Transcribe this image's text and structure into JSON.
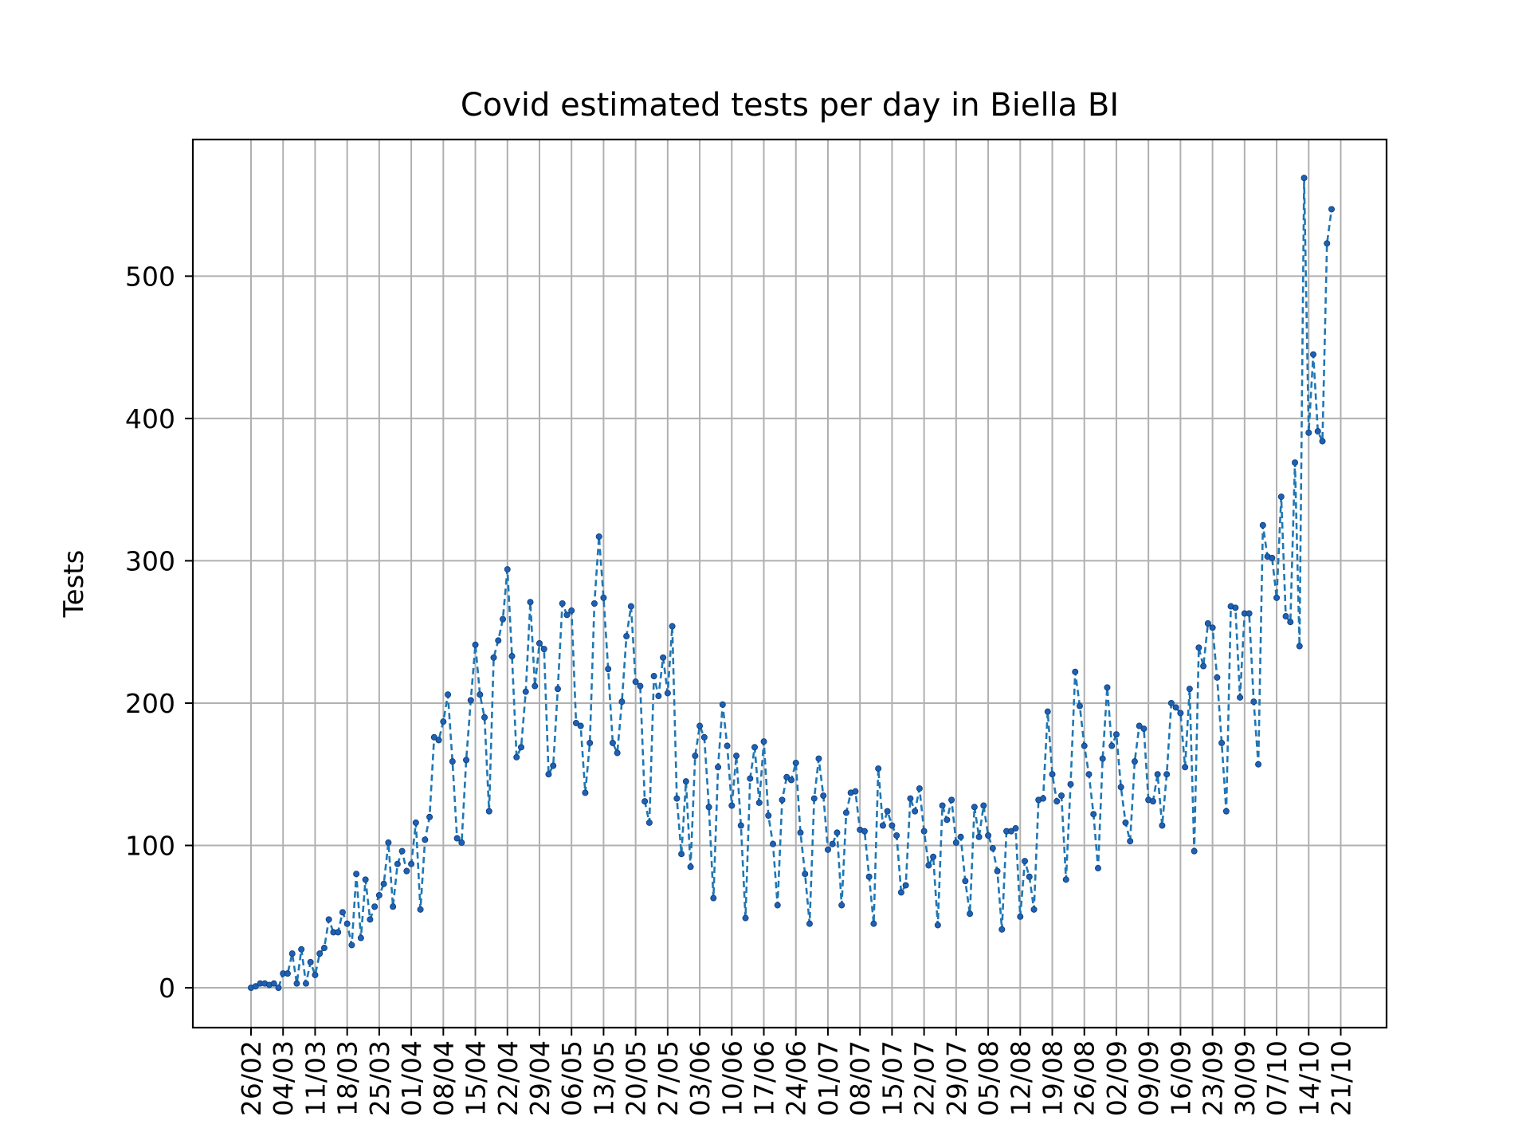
{
  "colors": {
    "line": "#1f77b4",
    "marker": "#1f5fb4",
    "grid": "#b0b0b0",
    "frame": "#000000",
    "background": "#ffffff"
  },
  "chart_data": {
    "type": "line",
    "title": "Covid estimated tests per day in Biella BI",
    "xlabel": "",
    "ylabel": "Tests",
    "grid": true,
    "line_style": "dashed",
    "marker": "dot",
    "ylim": [
      -28,
      596
    ],
    "yticks": [
      0,
      100,
      200,
      300,
      400,
      500
    ],
    "x_start_label": "26/02",
    "x_tick_labels": [
      "26/02",
      "04/03",
      "11/03",
      "18/03",
      "25/03",
      "01/04",
      "08/04",
      "15/04",
      "22/04",
      "29/04",
      "06/05",
      "13/05",
      "20/05",
      "27/05",
      "03/06",
      "10/06",
      "17/06",
      "24/06",
      "01/07",
      "08/07",
      "15/07",
      "22/07",
      "29/07",
      "05/08",
      "12/08",
      "19/08",
      "26/08",
      "02/09",
      "09/09",
      "16/09",
      "23/09",
      "30/09",
      "07/10",
      "14/10",
      "21/10"
    ],
    "values": [
      0,
      1,
      3,
      3,
      2,
      3,
      0,
      10,
      10,
      24,
      3,
      27,
      3,
      18,
      9,
      24,
      28,
      48,
      39,
      39,
      53,
      45,
      30,
      80,
      35,
      76,
      48,
      57,
      65,
      73,
      102,
      57,
      87,
      96,
      82,
      87,
      116,
      55,
      104,
      120,
      176,
      174,
      187,
      206,
      159,
      105,
      102,
      160,
      202,
      241,
      206,
      190,
      124,
      232,
      244,
      259,
      294,
      233,
      162,
      169,
      208,
      271,
      212,
      242,
      238,
      150,
      156,
      210,
      270,
      262,
      265,
      186,
      184,
      137,
      172,
      270,
      317,
      274,
      224,
      172,
      165,
      201,
      247,
      268,
      215,
      212,
      131,
      116,
      219,
      205,
      232,
      207,
      254,
      133,
      94,
      145,
      85,
      163,
      184,
      176,
      127,
      63,
      155,
      199,
      170,
      128,
      163,
      114,
      49,
      147,
      169,
      130,
      173,
      121,
      101,
      58,
      132,
      148,
      146,
      158,
      109,
      80,
      45,
      133,
      161,
      135,
      97,
      101,
      109,
      58,
      123,
      137,
      138,
      111,
      110,
      78,
      45,
      154,
      114,
      124,
      114,
      107,
      67,
      72,
      133,
      124,
      140,
      110,
      86,
      92,
      44,
      128,
      118,
      132,
      102,
      106,
      75,
      52,
      127,
      106,
      128,
      107,
      98,
      82,
      41,
      110,
      110,
      112,
      50,
      89,
      78,
      55,
      132,
      133,
      194,
      150,
      131,
      135,
      76,
      143,
      222,
      198,
      170,
      150,
      122,
      84,
      161,
      211,
      170,
      178,
      141,
      116,
      103,
      159,
      184,
      182,
      132,
      131,
      150,
      114,
      150,
      200,
      197,
      193,
      155,
      210,
      96,
      239,
      226,
      256,
      253,
      218,
      172,
      124,
      268,
      267,
      204,
      263,
      263,
      201,
      157,
      325,
      303,
      302,
      274,
      345,
      261,
      257,
      369,
      240,
      569,
      390,
      445,
      391,
      384,
      523,
      547
    ]
  }
}
